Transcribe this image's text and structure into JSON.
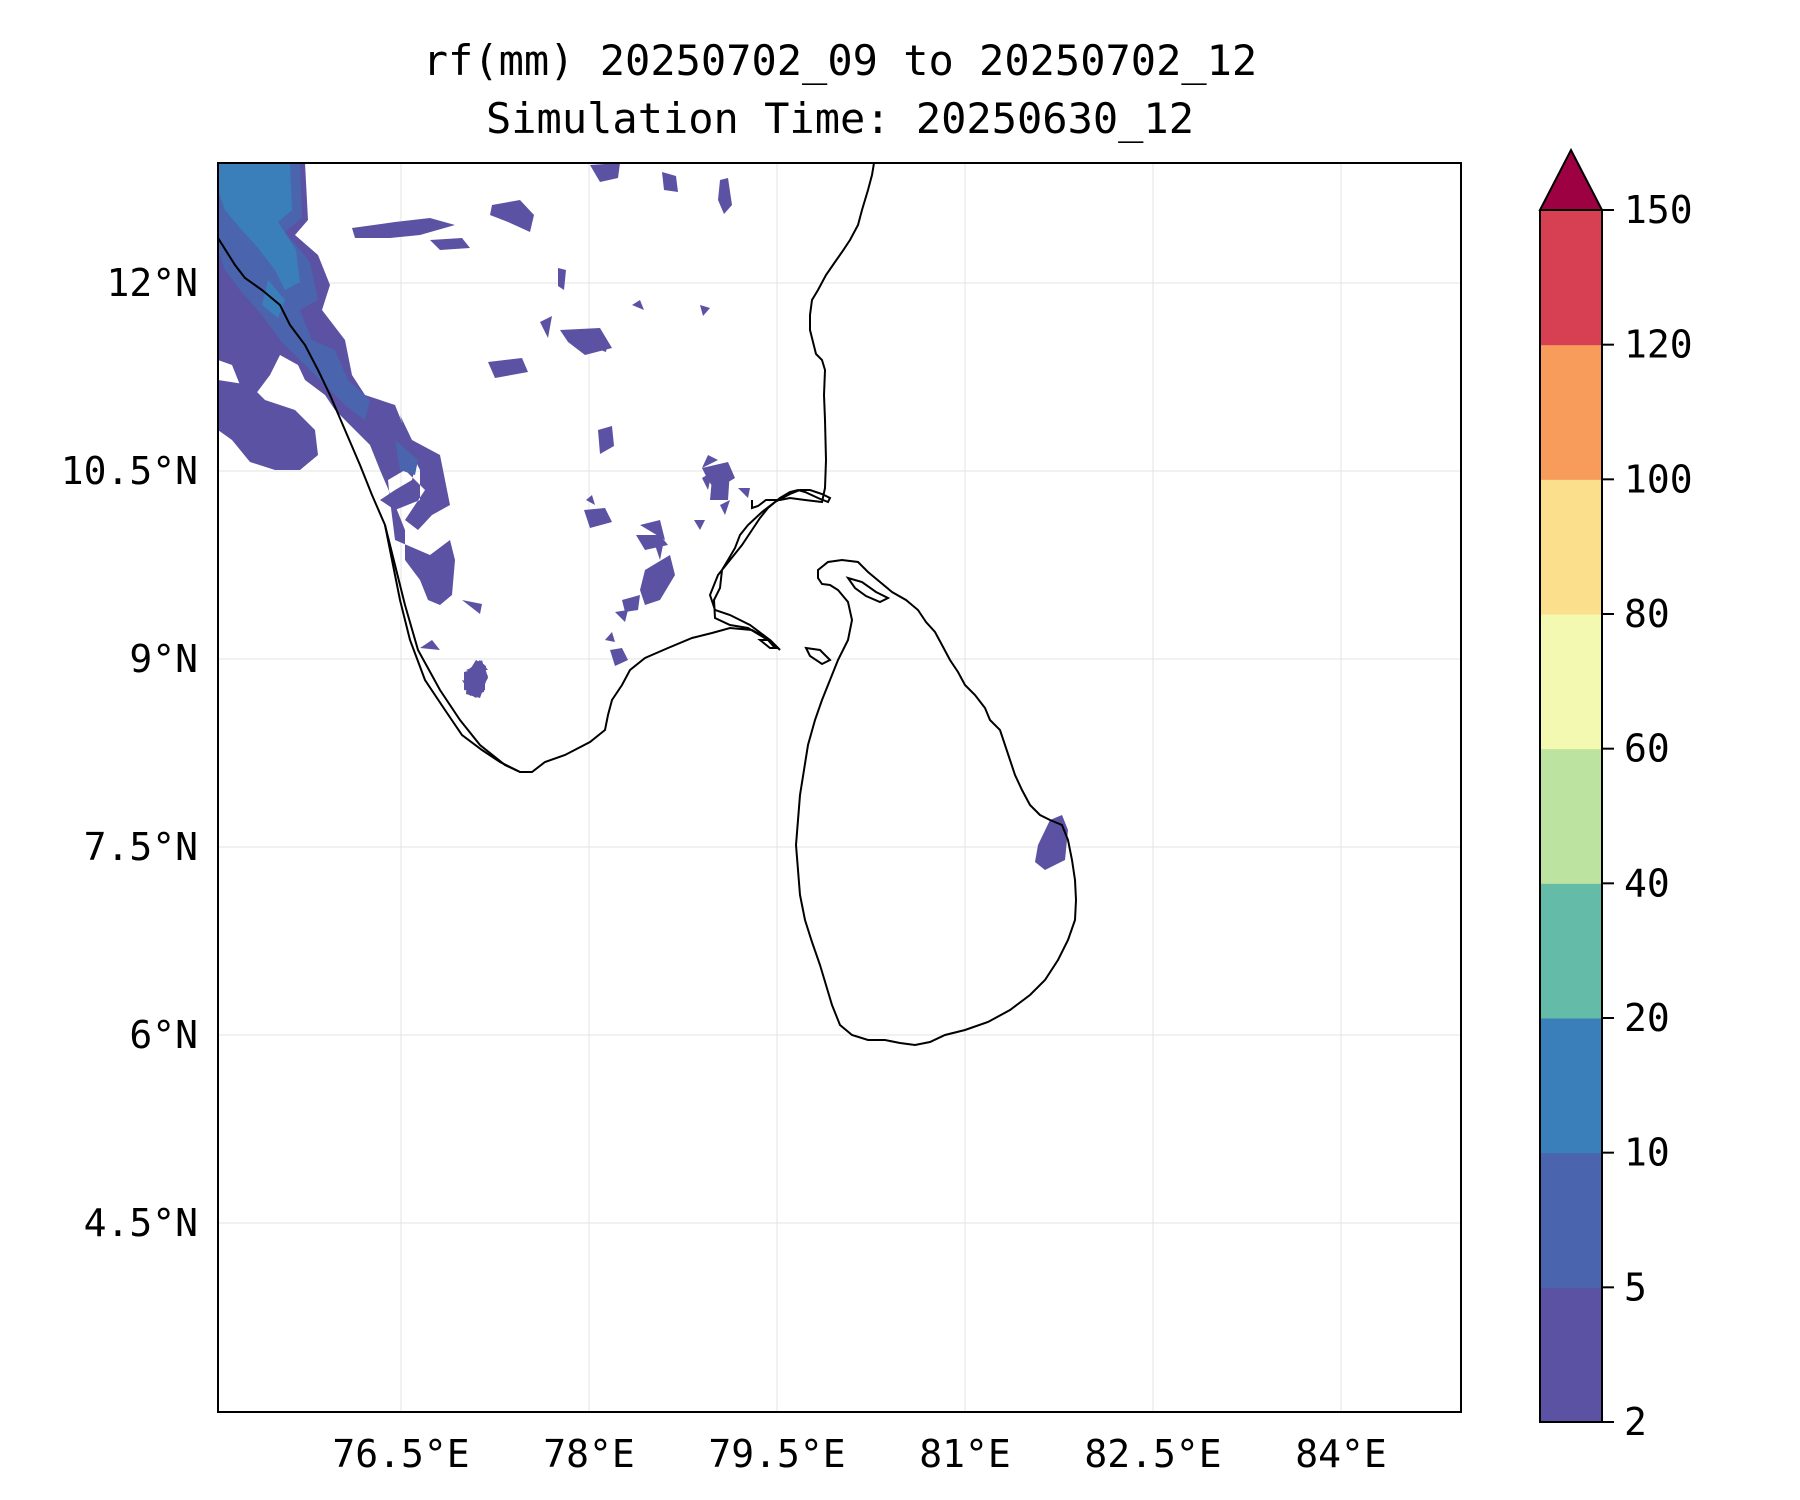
{
  "title_line1": "rf(mm) 20250702_09 to 20250702_12",
  "title_line2": "Simulation Time: 20250630_12",
  "lon_ticks": [
    {
      "value": 76.5,
      "label": "76.5°E"
    },
    {
      "value": 78.0,
      "label": "78°E"
    },
    {
      "value": 79.5,
      "label": "79.5°E"
    },
    {
      "value": 81.0,
      "label": "81°E"
    },
    {
      "value": 82.5,
      "label": "82.5°E"
    },
    {
      "value": 84.0,
      "label": "84°E"
    }
  ],
  "lat_ticks": [
    {
      "value": 12.0,
      "label": "12°N"
    },
    {
      "value": 10.5,
      "label": "10.5°N"
    },
    {
      "value": 9.0,
      "label": "9°N"
    },
    {
      "value": 7.5,
      "label": "7.5°N"
    },
    {
      "value": 6.0,
      "label": "6°N"
    },
    {
      "value": 4.5,
      "label": "4.5°N"
    }
  ],
  "colorbar": {
    "levels": [
      "2",
      "5",
      "10",
      "20",
      "40",
      "60",
      "80",
      "100",
      "120",
      "150"
    ],
    "colors": [
      "#5b52a3",
      "#4a65ad",
      "#3a7fba",
      "#63bba8",
      "#bde3a0",
      "#f3f9b0",
      "#fbdf8d",
      "#f89c5b",
      "#d64052"
    ],
    "extend_color": "#9e0142"
  }
}
